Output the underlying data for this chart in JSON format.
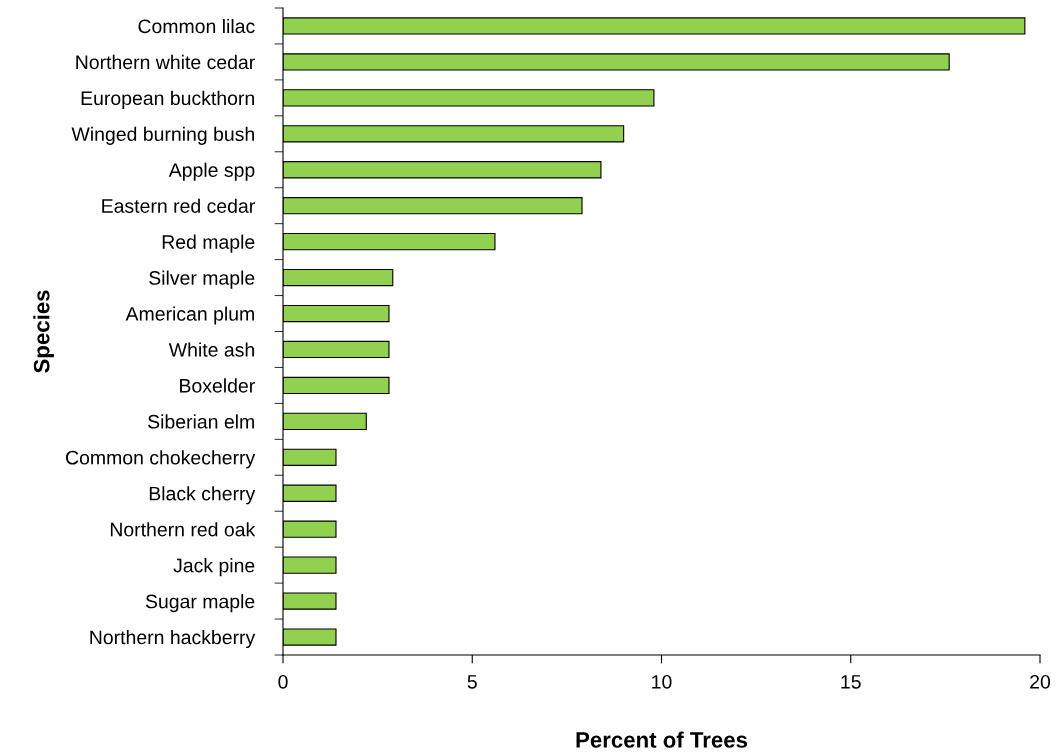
{
  "chart_data": {
    "type": "bar",
    "orientation": "horizontal",
    "xlabel": "Percent of Trees",
    "ylabel": "Species",
    "categories": [
      "Common lilac",
      "Northern white cedar",
      "European buckthorn",
      "Winged burning bush",
      "Apple spp",
      "Eastern red cedar",
      "Red maple",
      "Silver maple",
      "American plum",
      "White ash",
      "Boxelder",
      "Siberian elm",
      "Common chokecherry",
      "Black cherry",
      "Northern red oak",
      "Jack pine",
      "Sugar maple",
      "Northern hackberry"
    ],
    "values": [
      19.6,
      17.6,
      9.8,
      9.0,
      8.4,
      7.9,
      5.6,
      2.9,
      2.8,
      2.8,
      2.8,
      2.2,
      1.4,
      1.4,
      1.4,
      1.4,
      1.4,
      1.4
    ],
    "color": "#92d050",
    "xlim": [
      0,
      20
    ],
    "xticks": [
      0,
      5,
      10,
      15,
      20
    ],
    "grid": false
  }
}
